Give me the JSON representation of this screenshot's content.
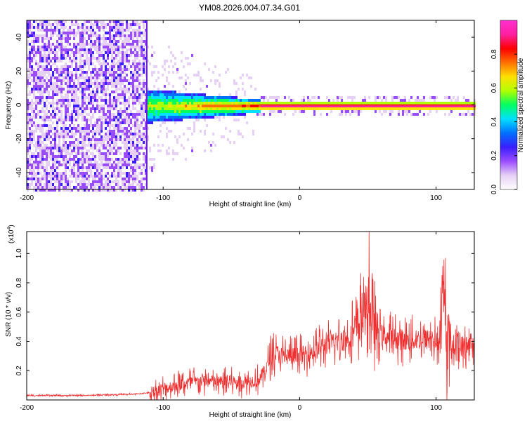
{
  "title": "YM08.2026.004.07.34.G01",
  "colors": {
    "snr_line": "#f03030",
    "axis": "#000000",
    "colormap": [
      "#ffffff",
      "#e6d0f5",
      "#9a4dff",
      "#3a1eff",
      "#0070ff",
      "#00e0ff",
      "#00ff60",
      "#b0ff00",
      "#ffe000",
      "#ff7000",
      "#ff0000",
      "#ff20a0",
      "#ff30d0"
    ]
  },
  "chart_data": [
    {
      "type": "heatmap",
      "title": "YM08.2026.004.07.34.G01",
      "xlabel": "Height of straight line (km)",
      "ylabel": "Frequency (Hz)",
      "xlim": [
        -200,
        128
      ],
      "ylim": [
        -50,
        50
      ],
      "xticks": [
        -200,
        -100,
        0,
        100
      ],
      "xtick_labels": [
        "-200",
        "-100",
        "0",
        "100"
      ],
      "yticks": [
        -40,
        -20,
        0,
        20,
        40
      ],
      "ytick_labels": [
        "-40",
        "-20",
        "0",
        "20",
        "40"
      ],
      "colorbar": {
        "label": "Normalized spectral amplitude",
        "range": [
          0,
          1
        ],
        "ticks": [
          0.0,
          0.2,
          0.4,
          0.6,
          0.8
        ],
        "tick_labels": [
          "0.0",
          "0.2",
          "0.4",
          "0.6",
          "0.8"
        ]
      },
      "regions": [
        {
          "x_range": [
            -200,
            -112
          ],
          "freq_spread_hz": 50,
          "amplitude": 0.08,
          "description": "broadband noise"
        },
        {
          "x_range": [
            -112,
            -30
          ],
          "freq_spread_hz": 10,
          "amplitude": 0.3,
          "description": "widening band near 0 Hz"
        },
        {
          "x_range": [
            -30,
            128
          ],
          "freq_spread_hz": 2,
          "amplitude": 0.95,
          "description": "narrow strong band at 0 Hz"
        }
      ],
      "band_center_hz": 0
    },
    {
      "type": "line",
      "xlabel": "Height of straight line (km)",
      "ylabel": "SNR (10 * v/v)",
      "scale_label": "(x10",
      "scale_exponent": "4",
      "xlim": [
        -200,
        128
      ],
      "ylim": [
        0,
        1.15
      ],
      "xticks": [
        -200,
        -100,
        0,
        100
      ],
      "xtick_labels": [
        "-200",
        "-100",
        "0",
        "100"
      ],
      "yticks": [
        0.2,
        0.4,
        0.6,
        0.8,
        1.0
      ],
      "ytick_labels": [
        "0.2",
        "0.4",
        "0.6",
        "0.8",
        "1.0"
      ],
      "series": [
        {
          "name": "SNR",
          "x": [
            -200,
            -180,
            -160,
            -140,
            -120,
            -110,
            -100,
            -90,
            -80,
            -70,
            -60,
            -50,
            -40,
            -30,
            -25,
            -20,
            -10,
            0,
            10,
            20,
            30,
            40,
            45,
            50,
            55,
            60,
            70,
            80,
            90,
            100,
            103,
            105,
            107,
            108,
            110,
            120,
            128
          ],
          "values": [
            0.03,
            0.03,
            0.03,
            0.035,
            0.04,
            0.05,
            0.08,
            0.1,
            0.12,
            0.13,
            0.12,
            0.12,
            0.12,
            0.14,
            0.2,
            0.32,
            0.3,
            0.3,
            0.33,
            0.38,
            0.4,
            0.45,
            0.55,
            0.65,
            0.48,
            0.44,
            0.42,
            0.4,
            0.42,
            0.4,
            0.38,
            0.7,
            0.6,
            0.37,
            0.38,
            0.37,
            0.37
          ]
        }
      ],
      "peaks": [
        {
          "x": 51,
          "y": 1.17
        },
        {
          "x": 47,
          "y": 0.84
        },
        {
          "x": 107,
          "y": 0.97
        }
      ]
    }
  ]
}
